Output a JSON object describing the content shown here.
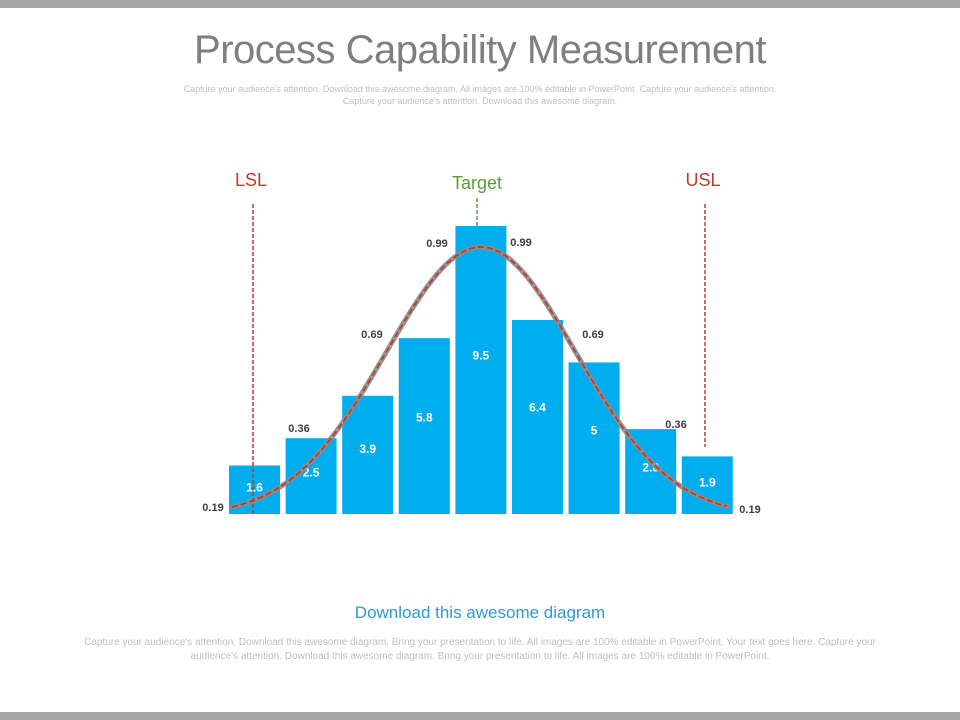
{
  "page": {
    "title": "Process Capability Measurement",
    "subtitle": "Capture your audience's attention. Download this awesome diagram. All images are 100% editable in PowerPoint. Capture your audience's attention. Capture your audience's attention. Download this awesome diagram.",
    "footer_heading": "Download this awesome diagram",
    "footer_text": "Capture your audience's attention. Download this awesome diagram. Bring your presentation to life. All images are 100% editable in PowerPoint. Your text goes here. Capture your audience's attention. Download this awesome diagram. Bring your presentation to life. All images are 100% editable in PowerPoint."
  },
  "chart_data": {
    "type": "bar",
    "categories": [
      "",
      "",
      "",
      "",
      "",
      "",
      "",
      "",
      ""
    ],
    "values": [
      1.6,
      2.5,
      3.9,
      5.8,
      9.5,
      6.4,
      5,
      2.8,
      1.9
    ],
    "bar_labels": [
      "1.6",
      "2.5",
      "3.9",
      "5.8",
      "9.5",
      "6.4",
      "5",
      "2.8",
      "1.9"
    ],
    "ylim": [
      0,
      9.5
    ],
    "grid": false,
    "curve_labels": [
      {
        "text": "0.19",
        "side": "left"
      },
      {
        "text": "0.36",
        "side": "left"
      },
      {
        "text": "0.69",
        "side": "left"
      },
      {
        "text": "0.99",
        "side": "left"
      },
      {
        "text": "0.99",
        "side": "right"
      },
      {
        "text": "0.69",
        "side": "right"
      },
      {
        "text": "0.36",
        "side": "right"
      },
      {
        "text": "0.19",
        "side": "right"
      }
    ],
    "markers": [
      {
        "label": "LSL",
        "color": "#c0392b"
      },
      {
        "label": "Target",
        "color": "#5a9e3a"
      },
      {
        "label": "USL",
        "color": "#c0392b"
      }
    ],
    "colors": {
      "bar": "#00adef",
      "curve": "#8c8c8c",
      "curve_dash": "#c0392b"
    }
  }
}
